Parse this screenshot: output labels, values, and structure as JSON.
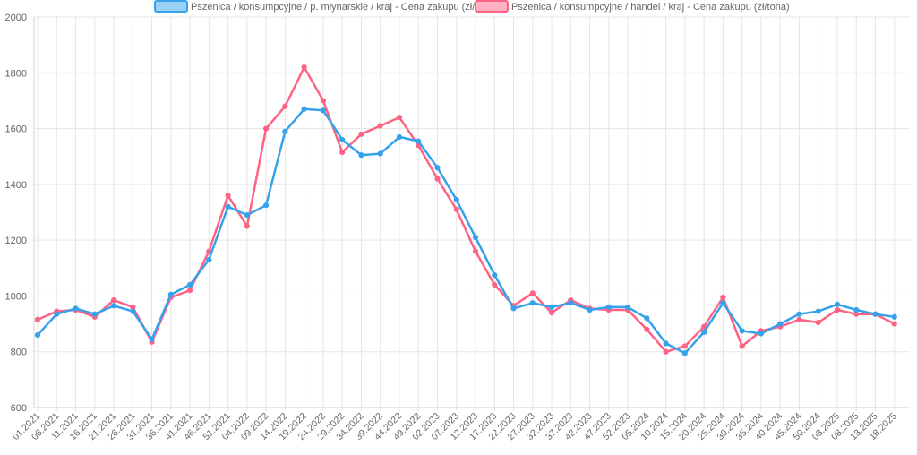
{
  "chart_data": {
    "type": "line",
    "ylim": [
      600,
      2000
    ],
    "y_ticks": [
      600,
      800,
      1000,
      1200,
      1400,
      1600,
      1800,
      2000
    ],
    "grid": true,
    "legend_position": "top",
    "x": [
      "01.2021",
      "06.2021",
      "11.2021",
      "16.2021",
      "21.2021",
      "26.2021",
      "31.2021",
      "36.2021",
      "41.2021",
      "46.2021",
      "51.2021",
      "04.2022",
      "09.2022",
      "14.2022",
      "19.2022",
      "24.2022",
      "29.2022",
      "34.2022",
      "39.2022",
      "44.2022",
      "49.2022",
      "02.2023",
      "07.2023",
      "12.2023",
      "17.2023",
      "22.2023",
      "27.2023",
      "32.2023",
      "37.2023",
      "42.2023",
      "47.2023",
      "52.2023",
      "05.2024",
      "10.2024",
      "15.2024",
      "20.2024",
      "25.2024",
      "30.2024",
      "35.2024",
      "40.2024",
      "45.2024",
      "50.2024",
      "03.2025",
      "08.2025",
      "13.2025",
      "18.2025"
    ],
    "series": [
      {
        "name": "Pszenica / konsumpcyjne / p. młynarskie / kraj - Cena zakupu (zł/tona)",
        "color": "#36a2eb",
        "fill": "#9ad0f5",
        "values": [
          860,
          935,
          955,
          935,
          965,
          945,
          845,
          1005,
          1040,
          1130,
          1320,
          1290,
          1325,
          1590,
          1670,
          1665,
          1560,
          1505,
          1510,
          1570,
          1555,
          1460,
          1345,
          1210,
          1075,
          955,
          975,
          960,
          975,
          950,
          960,
          960,
          920,
          830,
          795,
          870,
          975,
          875,
          865,
          900,
          935,
          945,
          970,
          950,
          935,
          925
        ]
      },
      {
        "name": "Pszenica / konsumpcyjne / handel / kraj - Cena zakupu (zł/tona)",
        "color": "#ff6384",
        "fill": "#ffb1c1",
        "values": [
          915,
          945,
          950,
          925,
          985,
          960,
          835,
          995,
          1020,
          1160,
          1360,
          1250,
          1600,
          1680,
          1820,
          1700,
          1515,
          1580,
          1610,
          1640,
          1540,
          1420,
          1310,
          1160,
          1040,
          965,
          1010,
          940,
          985,
          955,
          950,
          950,
          880,
          800,
          820,
          890,
          995,
          820,
          875,
          890,
          915,
          905,
          950,
          935,
          935,
          900
        ]
      }
    ]
  }
}
